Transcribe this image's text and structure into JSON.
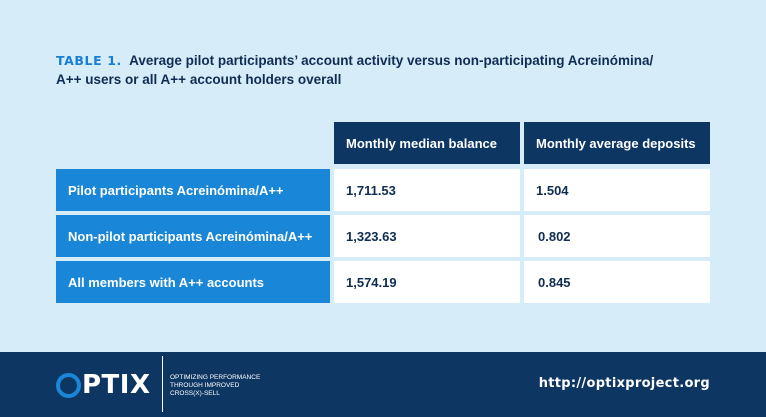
{
  "caption": {
    "label": "TABLE 1.",
    "text": "Average pilot participants’ account activity versus non-participating Acreinómina/ A++ users or all A++ account holders overall"
  },
  "table": {
    "columns": [
      "Monthly median balance",
      "Monthly average deposits"
    ],
    "rows": [
      {
        "label": "Pilot participants Acreinómina/A++",
        "values": [
          "1,711.53",
          "1.504"
        ]
      },
      {
        "label": "Non-pilot participants Acreinómina/A++",
        "values": [
          "1,323.63",
          "0.802"
        ]
      },
      {
        "label": "All members with A++ accounts",
        "values": [
          "1,574.19",
          "0.845"
        ]
      }
    ]
  },
  "footer": {
    "logo_letters": "PTIX",
    "tagline": [
      "OPTIMIZING PERFORMANCE",
      "THROUGH IMPROVED",
      "CROSS(X)-SELL"
    ],
    "url": "http://optixproject.org"
  },
  "colors": {
    "background": "#d6ecf9",
    "header_navy": "#0e3663",
    "row_blue": "#1a86d8",
    "caption_label": "#1a7fd0"
  }
}
